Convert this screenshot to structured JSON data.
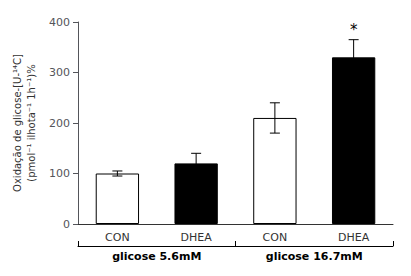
{
  "chart_data": {
    "type": "bar",
    "ylabel": "Oxidação de glicose-[U-¹⁴C]\n(pmol⁻¹ ilhota⁻¹ 1h⁻¹)%",
    "categories": [
      "CON",
      "DHEA",
      "CON",
      "DHEA"
    ],
    "values": [
      100,
      120,
      210,
      330
    ],
    "errors": [
      5,
      20,
      30,
      35
    ],
    "annotations": [
      null,
      null,
      null,
      "*"
    ],
    "colors": [
      "white",
      "black",
      "white",
      "black"
    ],
    "groups": [
      {
        "label": "glicose 5.6mM",
        "size": 2
      },
      {
        "label": "glicose 16.7mM",
        "size": 2
      }
    ],
    "ylim": [
      0,
      400
    ],
    "yticks": [
      0,
      100,
      200,
      300,
      400
    ],
    "grid": false
  }
}
